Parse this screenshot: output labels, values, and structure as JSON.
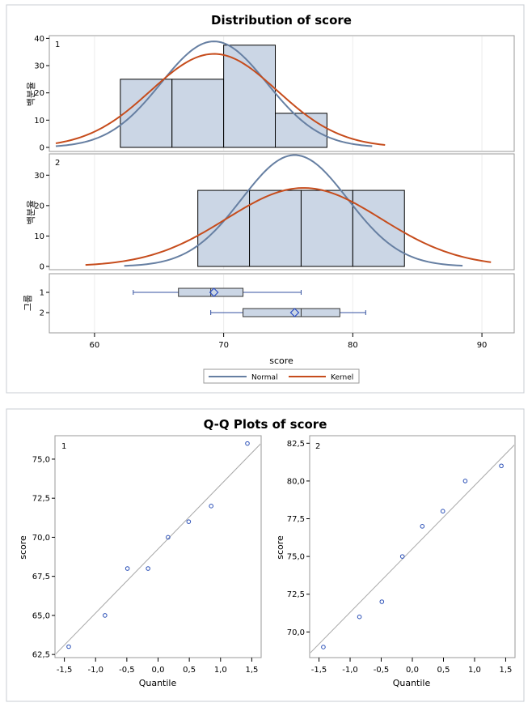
{
  "chart_data": [
    {
      "type": "histogram",
      "title": "Distribution of score",
      "xlabel": "score",
      "ylabel": "백분율",
      "xlim": [
        56.5,
        92.5
      ],
      "xticks": [
        60,
        70,
        80,
        90
      ],
      "legend": {
        "placement": "bottom-center",
        "entries": [
          {
            "name": "Normal",
            "color": "#667fa2"
          },
          {
            "name": "Kernel",
            "color": "#c64c1c"
          }
        ]
      },
      "panels": [
        {
          "label": "1",
          "ylim": [
            0,
            41
          ],
          "yticks": [
            0,
            10,
            20,
            30,
            40
          ],
          "bins": [
            {
              "x0": 62,
              "x1": 66,
              "value": 25
            },
            {
              "x0": 66,
              "x1": 70,
              "value": 25
            },
            {
              "x0": 70,
              "x1": 74,
              "value": 37.5
            },
            {
              "x0": 74,
              "x1": 78,
              "value": 12.5
            }
          ],
          "normal": {
            "mean": 69.25,
            "sd": 4.1,
            "peak": 38.9,
            "range": [
              57,
              81.5
            ]
          },
          "kernel": {
            "mean": 69.25,
            "sd": 4.9,
            "peak": 34.3,
            "range": [
              57,
              82.5
            ]
          }
        },
        {
          "label": "2",
          "ylim": [
            0,
            37
          ],
          "yticks": [
            0,
            10,
            20,
            30
          ],
          "bins": [
            {
              "x0": 68,
              "x1": 72,
              "value": 25
            },
            {
              "x0": 72,
              "x1": 76,
              "value": 25
            },
            {
              "x0": 76,
              "x1": 80,
              "value": 25
            },
            {
              "x0": 80,
              "x1": 84,
              "value": 25
            }
          ],
          "normal": {
            "mean": 75.5,
            "sd": 4.1,
            "peak": 36.6,
            "range": [
              62.3,
              88.5
            ]
          },
          "kernel": {
            "mean": 76.2,
            "sd": 6.0,
            "peak": 25.8,
            "range": [
              59.3,
              90.7
            ]
          }
        }
      ],
      "boxplot": {
        "ylabel": "그룹",
        "groups": [
          {
            "label": "1",
            "min": 63,
            "q1": 66.5,
            "median": 69,
            "q3": 71.5,
            "max": 76,
            "mean": 69.25
          },
          {
            "label": "2",
            "min": 69,
            "q1": 71.5,
            "median": 76,
            "q3": 79,
            "max": 81,
            "mean": 75.5
          }
        ]
      }
    },
    {
      "type": "scatter",
      "title": "Q-Q Plots of score",
      "xlabel": "Quantile",
      "ylabel": "score",
      "panels": [
        {
          "label": "1",
          "xlim": [
            -1.65,
            1.65
          ],
          "ylim": [
            62.3,
            76.5
          ],
          "xticks": [
            -1.5,
            -1.0,
            -0.5,
            0.0,
            0.5,
            1.0,
            1.5
          ],
          "xtick_labels": [
            "-1,5",
            "-1,0",
            "-0,5",
            "0,0",
            "0,5",
            "1,0",
            "1,5"
          ],
          "yticks": [
            62.5,
            65.0,
            67.5,
            70.0,
            72.5,
            75.0
          ],
          "ytick_labels": [
            "62,5",
            "65,0",
            "67,5",
            "70,0",
            "72,5",
            "75,0"
          ],
          "x": [
            -1.43,
            -0.85,
            -0.49,
            -0.16,
            0.16,
            0.49,
            0.85,
            1.43
          ],
          "y": [
            63,
            65,
            68,
            68,
            70,
            71,
            72,
            76
          ],
          "line": {
            "intercept": 69.25,
            "slope": 4.1
          }
        },
        {
          "label": "2",
          "xlim": [
            -1.65,
            1.65
          ],
          "ylim": [
            68.3,
            83.0
          ],
          "xticks": [
            -1.5,
            -1.0,
            -0.5,
            0.0,
            0.5,
            1.0,
            1.5
          ],
          "xtick_labels": [
            "-1,5",
            "-1,0",
            "-0,5",
            "0,0",
            "0,5",
            "1,0",
            "1,5"
          ],
          "yticks": [
            70.0,
            72.5,
            75.0,
            77.5,
            80.0,
            82.5
          ],
          "ytick_labels": [
            "70,0",
            "72,5",
            "75,0",
            "77,5",
            "80,0",
            "82,5"
          ],
          "x": [
            -1.43,
            -0.85,
            -0.49,
            -0.16,
            0.16,
            0.49,
            0.85,
            1.43
          ],
          "y": [
            69,
            71,
            72,
            75,
            77,
            78,
            80,
            81
          ],
          "line": {
            "intercept": 75.5,
            "slope": 4.2
          }
        }
      ]
    }
  ]
}
